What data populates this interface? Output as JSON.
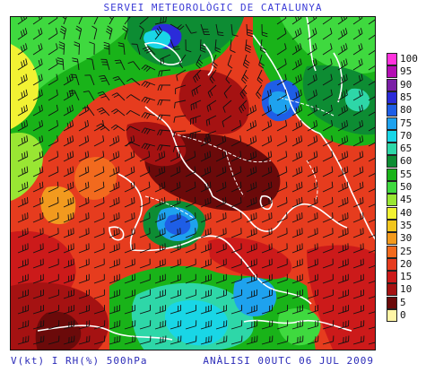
{
  "header": {
    "title": "SERVEI METEOROLÒGIC DE CATALUNYA"
  },
  "footer": {
    "variable": "V(kt) I RH(%) 500hPa",
    "analysis": "ANÀLISI 00UTC 06 JUL 2009"
  },
  "map": {
    "field": "relative humidity",
    "level": "500 hPa",
    "overlay": "wind barbs"
  },
  "legend": {
    "items": [
      {
        "label": "100",
        "color": "#ff33dd"
      },
      {
        "label": "95",
        "color": "#b30eb3"
      },
      {
        "label": "90",
        "color": "#7a1fa6"
      },
      {
        "label": "85",
        "color": "#2b2bd9"
      },
      {
        "label": "80",
        "color": "#1e5ee6"
      },
      {
        "label": "75",
        "color": "#1ea2ee"
      },
      {
        "label": "70",
        "color": "#19d6e6"
      },
      {
        "label": "65",
        "color": "#2ed7a8"
      },
      {
        "label": "60",
        "color": "#0d8c33"
      },
      {
        "label": "55",
        "color": "#19b319"
      },
      {
        "label": "50",
        "color": "#3fd93f"
      },
      {
        "label": "45",
        "color": "#99e633"
      },
      {
        "label": "40",
        "color": "#f2f233"
      },
      {
        "label": "35",
        "color": "#f2c61e"
      },
      {
        "label": "30",
        "color": "#f29a1e"
      },
      {
        "label": "25",
        "color": "#f26a1e"
      },
      {
        "label": "20",
        "color": "#e63c1e"
      },
      {
        "label": "15",
        "color": "#cc1a1a"
      },
      {
        "label": "10",
        "color": "#a51212"
      },
      {
        "label": "5",
        "color": "#6b0a0a"
      },
      {
        "label": "0",
        "color": "#fff5a6"
      }
    ]
  }
}
